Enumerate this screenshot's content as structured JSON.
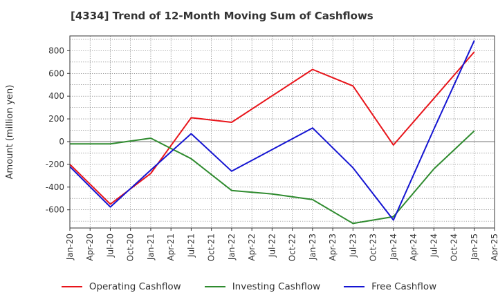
{
  "title": "[4334]  Trend of 12-Month Moving Sum of Cashflows",
  "chart_data": {
    "type": "line",
    "ylabel": "Amount (million yen)",
    "xlabel": "",
    "ylim": [
      -760,
      930
    ],
    "yticks": [
      -600,
      -400,
      -200,
      0,
      200,
      400,
      600,
      800
    ],
    "xticks": [
      "Jan-20",
      "Apr-20",
      "Jul-20",
      "Oct-20",
      "Jan-21",
      "Apr-21",
      "Jul-21",
      "Oct-21",
      "Jan-22",
      "Apr-22",
      "Jul-22",
      "Oct-22",
      "Jan-23",
      "Apr-23",
      "Jul-23",
      "Oct-23",
      "Jan-24",
      "Apr-24",
      "Jul-24",
      "Oct-24",
      "Jan-25",
      "Apr-25"
    ],
    "grid": true,
    "legend_position": "bottom",
    "x": [
      "Jan-20",
      "Jul-20",
      "Jan-21",
      "Jul-21",
      "Jan-22",
      "Jul-22",
      "Jan-23",
      "Jul-23",
      "Jan-24",
      "Jul-24",
      "Jan-25"
    ],
    "series": [
      {
        "name": "Operating Cashflow",
        "color": "#e8141a",
        "values": [
          -200,
          -550,
          -280,
          210,
          170,
          null,
          635,
          490,
          -30,
          null,
          790
        ]
      },
      {
        "name": "Investing Cashflow",
        "color": "#2f8b2f",
        "values": [
          -20,
          -20,
          30,
          -150,
          -430,
          -460,
          -510,
          -720,
          -660,
          -240,
          95
        ]
      },
      {
        "name": "Free Cashflow",
        "color": "#1414d2",
        "values": [
          -220,
          -575,
          -250,
          70,
          -260,
          null,
          120,
          -230,
          -690,
          110,
          890
        ]
      }
    ]
  }
}
